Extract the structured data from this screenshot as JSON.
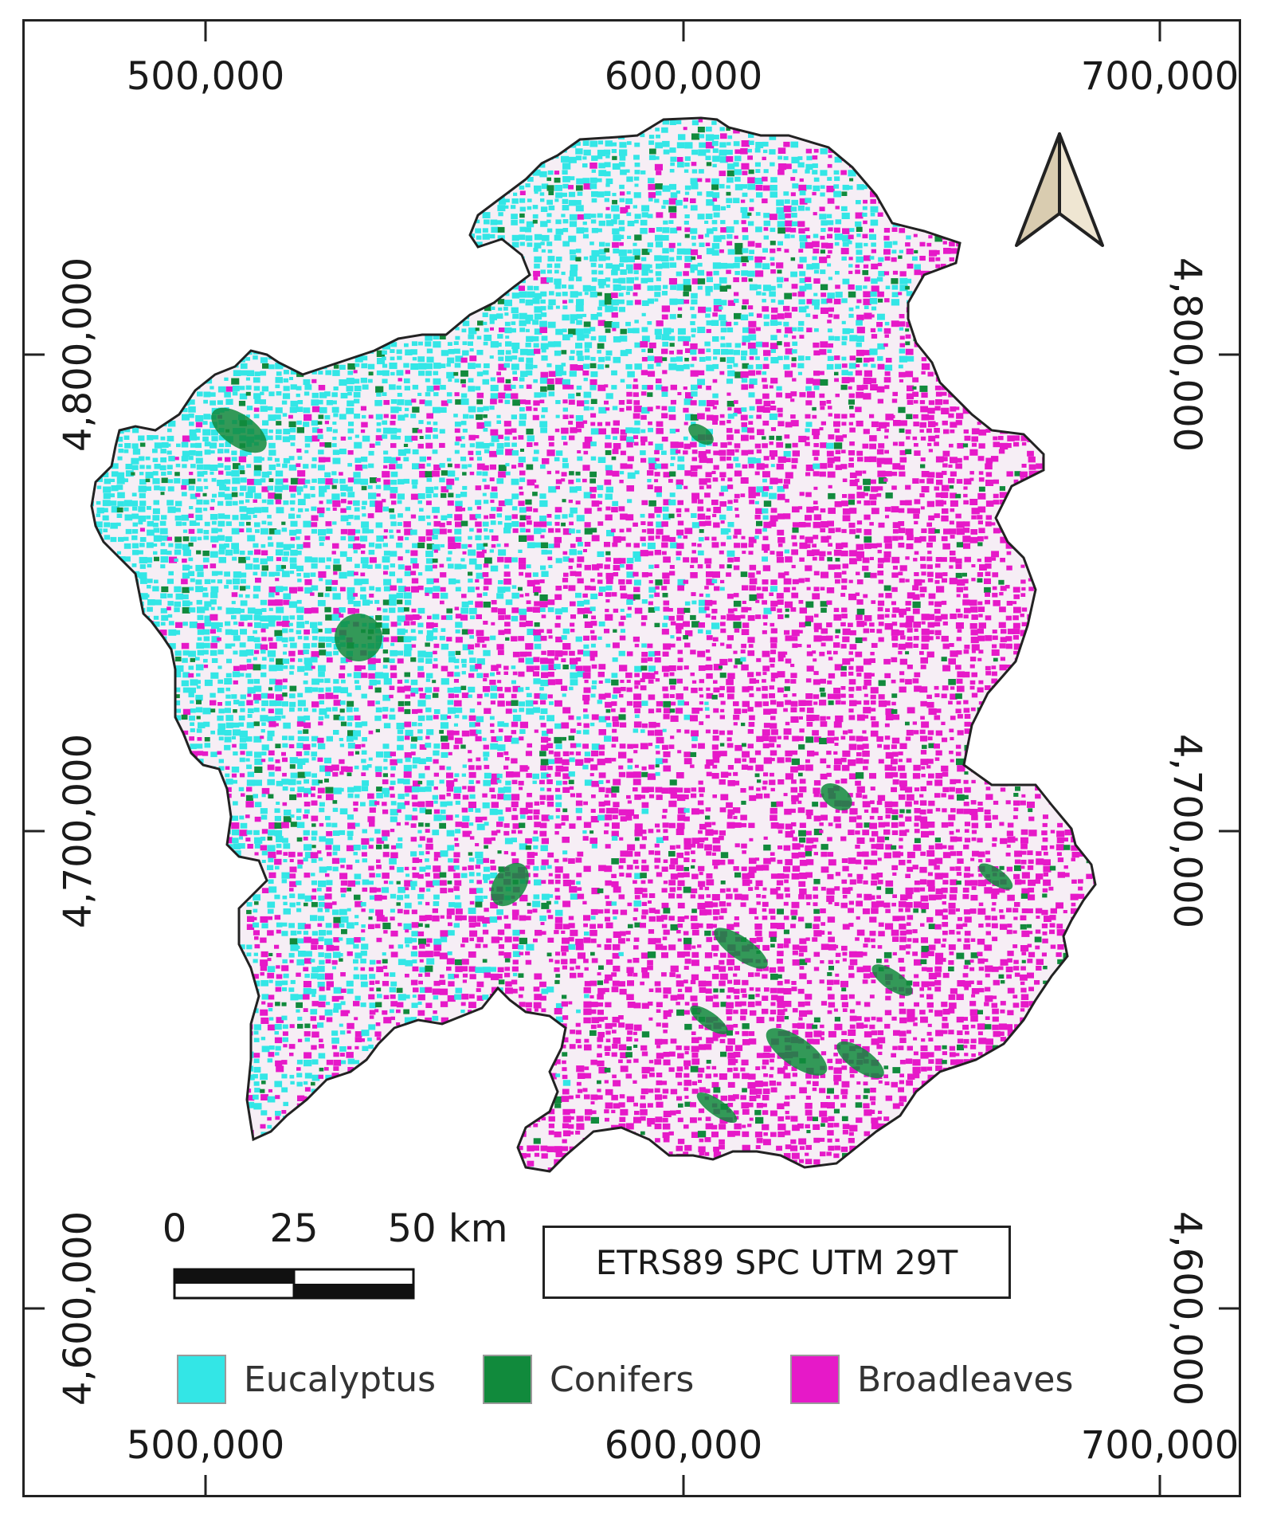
{
  "map": {
    "x_labels_top": [
      "500,000",
      "600,000",
      "700,000"
    ],
    "x_labels_bottom": [
      "500,000",
      "600,000",
      "700,000"
    ],
    "y_labels_left": [
      "4,800,000",
      "4,700,000",
      "4,600,000"
    ],
    "y_labels_right": [
      "4,800,000",
      "4,700,000",
      "4,600,000"
    ],
    "crs_label": "ETRS89 SPC UTM 29T",
    "scale_bar": {
      "labels": [
        "0",
        "25",
        "50 km"
      ]
    },
    "north_arrow_icon": "north-arrow-icon",
    "legend": [
      {
        "label": "Eucalyptus",
        "color": "#33e6e6"
      },
      {
        "label": "Conifers",
        "color": "#118a3c"
      },
      {
        "label": "Broadleaves",
        "color": "#e619c8"
      }
    ],
    "colors": {
      "eucalyptus": "#33e6e6",
      "conifers": "#118a3c",
      "broadleaves": "#e619c8",
      "background_land": "#f6eef5",
      "outline": "#222222"
    }
  }
}
